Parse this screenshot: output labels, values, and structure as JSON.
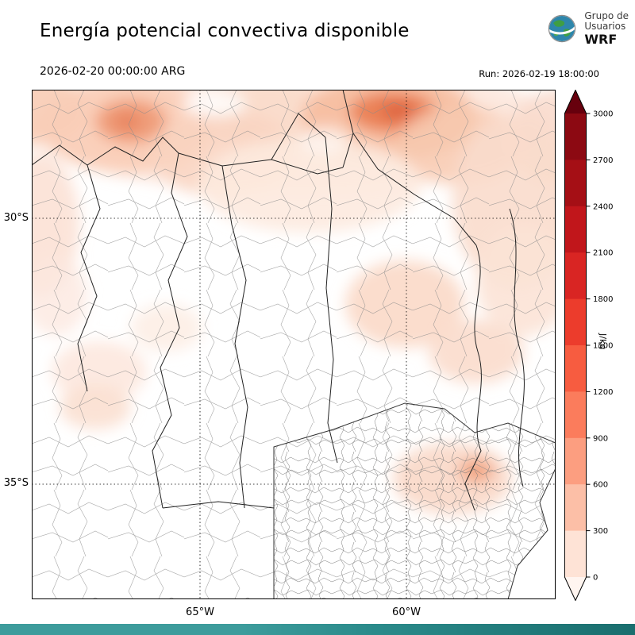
{
  "header": {
    "title": "Energía potencial convectiva disponible",
    "valid_time": "2026-02-20 00:00:00 ARG",
    "run_label": "Run: 2026-02-19 18:00:00",
    "logo": {
      "line1": "Grupo de",
      "line2": "Usuarios",
      "line3": "WRF"
    }
  },
  "map": {
    "lat_ticks": [
      {
        "label": "30°S"
      },
      {
        "label": "35°S"
      }
    ],
    "lon_ticks": [
      {
        "label": "65°W"
      },
      {
        "label": "60°W"
      }
    ]
  },
  "colorbar": {
    "unit": "J/kg",
    "tick_labels": [
      "3000",
      "2700",
      "2400",
      "2100",
      "1800",
      "1500",
      "1200",
      "900",
      "600",
      "300",
      "0"
    ],
    "segment_colors_top_to_bottom": [
      "#8c0912",
      "#a50f15",
      "#c1161b",
      "#d92523",
      "#ec3c2c",
      "#f75c40",
      "#fb7c5c",
      "#fc9e80",
      "#fcbfa7",
      "#fee3d6"
    ],
    "over_arrow_color": "#67000d",
    "under_arrow_color": "#fff5f0"
  },
  "chart_data": {
    "type": "heatmap",
    "title": "Energía potencial convectiva disponible",
    "units": "J/kg",
    "colorbar_ticks": [
      0,
      300,
      600,
      900,
      1200,
      1500,
      1800,
      2100,
      2400,
      2700,
      3000
    ],
    "colorbar_range": [
      0,
      3000
    ],
    "extend": "both",
    "lat_gridlines": [
      "30°S",
      "35°S"
    ],
    "lon_gridlines": [
      "65°W",
      "60°W"
    ],
    "valid_time": "2026-02-20 00:00:00 ARG",
    "run": "2026-02-19 18:00:00",
    "field_summary": "CAPE shading mostly 0-600 J/kg over northern and eastern Argentina, local maxima ~600-900 J/kg near the northern edge, near-zero over central and southwestern sectors"
  }
}
